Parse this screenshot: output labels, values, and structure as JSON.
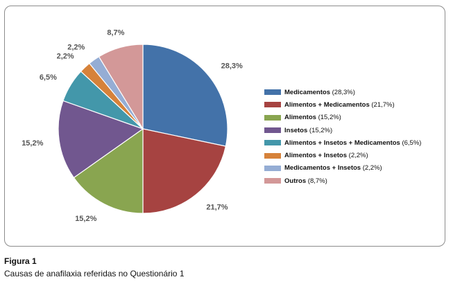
{
  "chart_data": {
    "type": "pie",
    "slices": [
      {
        "name": "Medicamentos",
        "value_label": "28,3%",
        "value": 28.3,
        "color": "#4372a9"
      },
      {
        "name": "Alimentos + Medicamentos",
        "value_label": "21,7%",
        "value": 21.7,
        "color": "#a64341"
      },
      {
        "name": "Alimentos",
        "value_label": "15,2%",
        "value": 15.2,
        "color": "#89a550"
      },
      {
        "name": "Insetos",
        "value_label": "15,2%",
        "value": 15.2,
        "color": "#71578f"
      },
      {
        "name": "Alimentos + Insetos + Medicamentos",
        "value_label": "6,5%",
        "value": 6.5,
        "color": "#4397aa"
      },
      {
        "name": "Alimentos + Insetos",
        "value_label": "2,2%",
        "value": 2.2,
        "color": "#d6823a"
      },
      {
        "name": "Medicamentos + Insetos",
        "value_label": "2,2%",
        "value": 2.2,
        "color": "#95add4"
      },
      {
        "name": "Outros",
        "value_label": "8,7%",
        "value": 8.7,
        "color": "#d39898"
      }
    ],
    "start_angle": "12 o'clock",
    "direction": "clockwise",
    "legend_placement": "right"
  },
  "caption": {
    "title": "Figura 1",
    "text": "Causas de anafilaxia referidas no Questionário 1"
  }
}
